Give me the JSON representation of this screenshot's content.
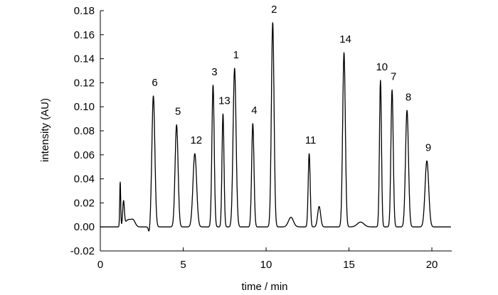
{
  "chart_data": {
    "type": "line",
    "title": "",
    "xlabel": "time / min",
    "ylabel": "intensity (AU)",
    "xlim": [
      0,
      21.2
    ],
    "ylim": [
      -0.02,
      0.18
    ],
    "x_ticks": [
      0,
      5,
      10,
      15,
      20
    ],
    "x_tick_labels": [
      "0",
      "5",
      "10",
      "15",
      "20"
    ],
    "y_ticks": [
      -0.02,
      0.0,
      0.02,
      0.04,
      0.06,
      0.08,
      0.1,
      0.12,
      0.14,
      0.16,
      0.18
    ],
    "y_tick_labels": [
      "-0.02",
      "0.00",
      "0.02",
      "0.04",
      "0.06",
      "0.08",
      "0.10",
      "0.12",
      "0.14",
      "0.16",
      "0.18"
    ],
    "grid": false,
    "baseline": 0.0,
    "peaks": [
      {
        "label": "6",
        "x": 3.2,
        "y": 0.109,
        "width": 0.09
      },
      {
        "label": "5",
        "x": 4.6,
        "y": 0.085,
        "width": 0.09
      },
      {
        "label": "12",
        "x": 5.7,
        "y": 0.061,
        "width": 0.11
      },
      {
        "label": "3",
        "x": 6.8,
        "y": 0.118,
        "width": 0.07
      },
      {
        "label": "13",
        "x": 7.4,
        "y": 0.094,
        "width": 0.06
      },
      {
        "label": "1",
        "x": 8.1,
        "y": 0.132,
        "width": 0.09
      },
      {
        "label": "4",
        "x": 9.2,
        "y": 0.086,
        "width": 0.07
      },
      {
        "label": "2",
        "x": 10.4,
        "y": 0.17,
        "width": 0.08
      },
      {
        "label": "11",
        "x": 12.6,
        "y": 0.061,
        "width": 0.06
      },
      {
        "label": "14",
        "x": 14.7,
        "y": 0.145,
        "width": 0.08
      },
      {
        "label": "10",
        "x": 16.9,
        "y": 0.122,
        "width": 0.06
      },
      {
        "label": "7",
        "x": 17.6,
        "y": 0.114,
        "width": 0.07
      },
      {
        "label": "8",
        "x": 18.5,
        "y": 0.097,
        "width": 0.09
      },
      {
        "label": "9",
        "x": 19.7,
        "y": 0.055,
        "width": 0.11
      }
    ],
    "minor_features": [
      {
        "x": 1.2,
        "y": 0.037,
        "width": 0.03
      },
      {
        "x": 1.4,
        "y": 0.02,
        "width": 0.05
      },
      {
        "x": 1.7,
        "y": 0.006,
        "width": 0.2
      },
      {
        "x": 2.0,
        "y": 0.004,
        "width": 0.12
      },
      {
        "x": 2.95,
        "y": -0.005,
        "width": 0.05
      },
      {
        "x": 11.5,
        "y": 0.008,
        "width": 0.15
      },
      {
        "x": 13.2,
        "y": 0.017,
        "width": 0.09
      },
      {
        "x": 15.7,
        "y": 0.004,
        "width": 0.2
      }
    ]
  }
}
